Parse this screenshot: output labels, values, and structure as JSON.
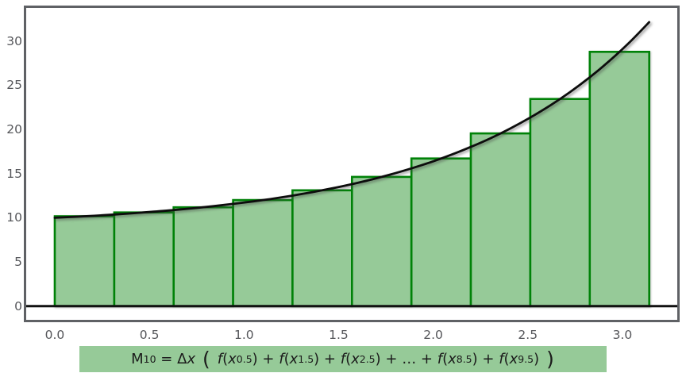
{
  "chart_data": {
    "type": "bar",
    "subtype": "midpoint-riemann-sum-with-curve",
    "title": "",
    "xlabel": "",
    "ylabel": "",
    "grid": false,
    "legend": false,
    "xlim": [
      -0.151,
      3.29
    ],
    "ylim": [
      -1.55,
      33.75
    ],
    "x_ticks": [
      {
        "value": 0.0,
        "label": "0.0"
      },
      {
        "value": 0.5,
        "label": "0.5"
      },
      {
        "value": 1.0,
        "label": "1.0"
      },
      {
        "value": 1.5,
        "label": "1.5"
      },
      {
        "value": 2.0,
        "label": "2.0"
      },
      {
        "value": 2.5,
        "label": "2.5"
      },
      {
        "value": 3.0,
        "label": "3.0"
      }
    ],
    "y_ticks": [
      {
        "value": 0,
        "label": "0"
      },
      {
        "value": 5,
        "label": "5"
      },
      {
        "value": 10,
        "label": "10"
      },
      {
        "value": 15,
        "label": "15"
      },
      {
        "value": 20,
        "label": "20"
      },
      {
        "value": 25,
        "label": "25"
      },
      {
        "value": 30,
        "label": "30"
      }
    ],
    "bars": {
      "n": 10,
      "edges": [
        0,
        0.3142,
        0.6283,
        0.9425,
        1.2566,
        1.5708,
        1.885,
        2.1991,
        2.5133,
        2.8274,
        3.1416
      ],
      "midpoints": [
        0.1571,
        0.4712,
        0.7854,
        1.0996,
        1.4137,
        1.7279,
        2.042,
        2.3562,
        2.6704,
        2.9845
      ],
      "heights": [
        10.17,
        10.6,
        11.19,
        12.0,
        13.11,
        14.63,
        16.71,
        19.55,
        23.45,
        28.78
      ]
    },
    "curve": {
      "x": [
        0.0,
        0.1047,
        0.2094,
        0.3142,
        0.4189,
        0.5236,
        0.6283,
        0.733,
        0.8378,
        0.9425,
        1.0472,
        1.1519,
        1.2566,
        1.3614,
        1.4661,
        1.5708,
        1.6755,
        1.7802,
        1.885,
        1.9897,
        2.0944,
        2.1991,
        2.3038,
        2.4086,
        2.5133,
        2.618,
        2.7227,
        2.8274,
        2.9322,
        3.0369,
        3.1416
      ],
      "y": [
        10.0,
        10.11,
        10.23,
        10.37,
        10.52,
        10.69,
        10.87,
        11.08,
        11.31,
        11.57,
        11.85,
        12.16,
        12.51,
        12.9,
        13.33,
        13.81,
        14.34,
        14.93,
        15.59,
        16.31,
        17.12,
        18.02,
        19.01,
        20.12,
        21.35,
        22.71,
        24.22,
        25.9,
        27.77,
        29.84,
        32.14
      ]
    },
    "colors": {
      "bar_fill": "#96ca98",
      "bar_border": "#008208",
      "curve": "#0d0d0d",
      "axis_line": "#111111",
      "tick_label": "#55565a",
      "plot_border": "#5f6165",
      "formula_bg": "#96ca98",
      "formula_text": "#1b1b1b"
    }
  },
  "formula": {
    "tokens": [
      {
        "t": "n",
        "v": "M"
      },
      {
        "t": "s",
        "v": "10"
      },
      {
        "t": "n",
        "v": " = "
      },
      {
        "t": "n",
        "v": "Δ"
      },
      {
        "t": "i",
        "v": "x"
      },
      {
        "t": "p",
        "v": " ( "
      },
      {
        "t": "i",
        "v": "f"
      },
      {
        "t": "n",
        "v": "("
      },
      {
        "t": "i",
        "v": "x"
      },
      {
        "t": "s",
        "v": "0.5"
      },
      {
        "t": "n",
        "v": ") + "
      },
      {
        "t": "i",
        "v": "f"
      },
      {
        "t": "n",
        "v": "("
      },
      {
        "t": "i",
        "v": "x"
      },
      {
        "t": "s",
        "v": "1.5"
      },
      {
        "t": "n",
        "v": ") + "
      },
      {
        "t": "i",
        "v": "f"
      },
      {
        "t": "n",
        "v": "("
      },
      {
        "t": "i",
        "v": "x"
      },
      {
        "t": "s",
        "v": "2.5"
      },
      {
        "t": "n",
        "v": ") + … + "
      },
      {
        "t": "i",
        "v": "f"
      },
      {
        "t": "n",
        "v": "("
      },
      {
        "t": "i",
        "v": "x"
      },
      {
        "t": "s",
        "v": "8.5"
      },
      {
        "t": "n",
        "v": ") + "
      },
      {
        "t": "i",
        "v": "f"
      },
      {
        "t": "n",
        "v": "("
      },
      {
        "t": "i",
        "v": "x"
      },
      {
        "t": "s",
        "v": "9.5"
      },
      {
        "t": "n",
        "v": ")"
      },
      {
        "t": "p",
        "v": " )"
      }
    ]
  }
}
